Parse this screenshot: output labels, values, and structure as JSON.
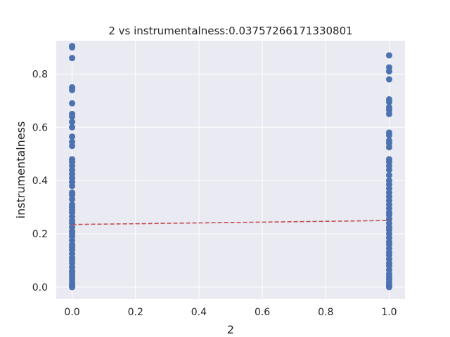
{
  "chart_data": {
    "type": "scatter",
    "title": "2 vs instrumentalness:0.03757266171330801",
    "xlabel": "2",
    "ylabel": "instrumentalness",
    "xlim": [
      -0.05,
      1.05
    ],
    "ylim": [
      -0.045,
      0.925
    ],
    "xticks": [
      0.0,
      0.2,
      0.4,
      0.6,
      0.8,
      1.0
    ],
    "xtick_labels": [
      "0.0",
      "0.2",
      "0.4",
      "0.6",
      "0.8",
      "1.0"
    ],
    "yticks": [
      0.0,
      0.2,
      0.4,
      0.6,
      0.8
    ],
    "ytick_labels": [
      "0.0",
      "0.2",
      "0.4",
      "0.6",
      "0.8"
    ],
    "grid": true,
    "colors": {
      "background": "#eaeaf2",
      "grid": "#ffffff",
      "points": "#4c72b0",
      "fit_line": "#c44e52"
    },
    "series": [
      {
        "x": 0,
        "y": [
          0.905,
          0.9,
          0.86,
          0.75,
          0.74,
          0.69,
          0.65,
          0.64,
          0.62,
          0.6,
          0.565,
          0.545,
          0.53,
          0.48,
          0.47,
          0.455,
          0.44,
          0.425,
          0.41,
          0.395,
          0.38,
          0.355,
          0.345,
          0.33,
          0.31,
          0.3,
          0.29,
          0.28,
          0.265,
          0.25,
          0.24,
          0.225,
          0.21,
          0.2,
          0.19,
          0.175,
          0.16,
          0.15,
          0.14,
          0.125,
          0.11,
          0.1,
          0.09,
          0.075,
          0.06,
          0.05,
          0.04,
          0.03,
          0.02,
          0.012,
          0.005,
          0.0
        ]
      },
      {
        "x": 1,
        "y": [
          0.87,
          0.825,
          0.81,
          0.78,
          0.705,
          0.695,
          0.675,
          0.665,
          0.65,
          0.58,
          0.57,
          0.55,
          0.54,
          0.525,
          0.48,
          0.47,
          0.455,
          0.44,
          0.42,
          0.4,
          0.385,
          0.37,
          0.355,
          0.34,
          0.325,
          0.31,
          0.295,
          0.28,
          0.27,
          0.255,
          0.24,
          0.225,
          0.215,
          0.2,
          0.185,
          0.17,
          0.16,
          0.145,
          0.13,
          0.12,
          0.105,
          0.09,
          0.08,
          0.065,
          0.05,
          0.04,
          0.03,
          0.02,
          0.012,
          0.005,
          0.0
        ]
      }
    ],
    "fit_line": {
      "x": [
        0,
        1
      ],
      "y": [
        0.235,
        0.25
      ],
      "style": "dashed"
    }
  }
}
